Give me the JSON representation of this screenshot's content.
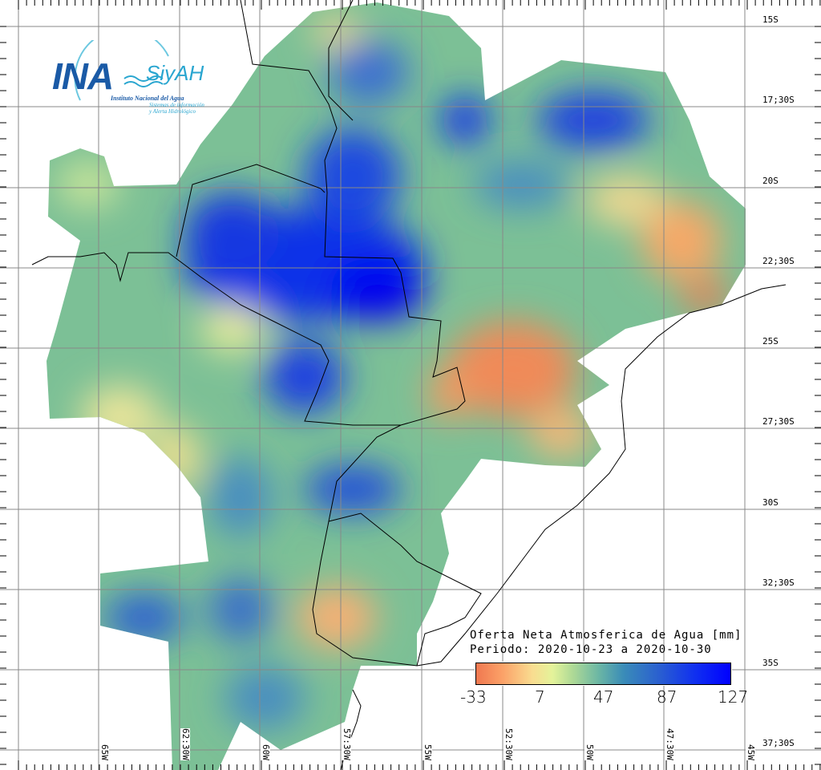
{
  "map": {
    "title": "Oferta Neta Atmosferica de Agua [mm]",
    "period": "Periodo: 2020-10-23 a 2020-10-30",
    "colorbar": {
      "labels": [
        "-33",
        "7",
        "47",
        "87",
        "127"
      ],
      "min": -33,
      "max": 127,
      "units": "mm",
      "colors": [
        "#f07850",
        "#e4f39a",
        "#3a8cb8",
        "#2a5fd0",
        "#0000ff"
      ]
    },
    "latitude_labels": [
      "15S",
      "17;30S",
      "20S",
      "22;30S",
      "25S",
      "27;30S",
      "30S",
      "32;30S",
      "35S",
      "37;30S"
    ],
    "longitude_labels": [
      "65W",
      "62:30W",
      "60W",
      "57:30W",
      "55W",
      "52:30W",
      "50W",
      "47:30W",
      "45W"
    ]
  },
  "logo": {
    "ina": "INA",
    "siyah": "SiyAH",
    "institute": "Instituto Nacional del Agua",
    "system_line1": "Sistemas de información",
    "system_line2": "y Alerta Hidrológico"
  }
}
